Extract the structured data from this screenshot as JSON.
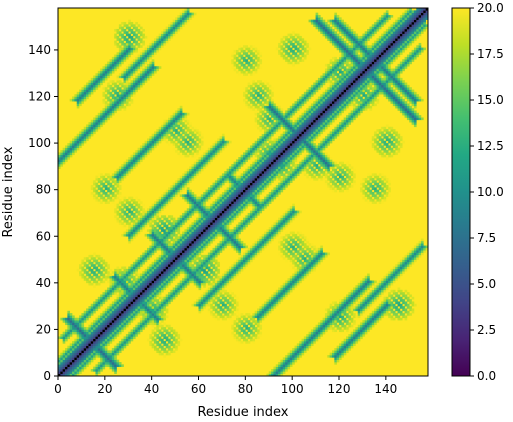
{
  "chart_data": {
    "type": "heatmap",
    "title": "",
    "xlabel": "Residue index",
    "ylabel": "Residue index",
    "n_residues": 158,
    "xlim": [
      0,
      158
    ],
    "ylim": [
      0,
      158
    ],
    "x_ticks": [
      0,
      20,
      40,
      60,
      80,
      100,
      120,
      140
    ],
    "y_ticks": [
      0,
      20,
      40,
      60,
      80,
      100,
      120,
      140
    ],
    "colorbar": {
      "min": 0.0,
      "max": 20.0,
      "ticks": [
        "0.0",
        "2.5",
        "5.0",
        "7.5",
        "10.0",
        "12.5",
        "15.0",
        "17.5",
        "20.0"
      ],
      "colormap": "viridis"
    },
    "saturated_value": 20.0,
    "diagonal_color": "#000000",
    "contact_segments": [
      {
        "axis": "diagonal",
        "offset": 0,
        "from": 0,
        "to": 158,
        "value": 3.0
      },
      {
        "axis": "anti",
        "sum": 28,
        "from": 4,
        "to": 24,
        "value": 7.0
      },
      {
        "axis": "anti",
        "sum": 66,
        "from": 24,
        "to": 42,
        "value": 8.5
      },
      {
        "axis": "anti",
        "sum": 100,
        "from": 40,
        "to": 60,
        "value": 8.0
      },
      {
        "axis": "anti",
        "sum": 132,
        "from": 55,
        "to": 77,
        "value": 8.0
      },
      {
        "axis": "anti",
        "sum": 158,
        "from": 73,
        "to": 85,
        "value": 9.0
      },
      {
        "axis": "anti",
        "sum": 205,
        "from": 90,
        "to": 115,
        "value": 7.5
      },
      {
        "axis": "anti",
        "sum": 262,
        "from": 110,
        "to": 131,
        "value": 7.0
      },
      {
        "axis": "anti",
        "sum": 270,
        "from": 118,
        "to": 152,
        "value": 8.0
      },
      {
        "axis": "parallel",
        "offset": 92,
        "from": 0,
        "to": 40,
        "value": 8.5
      },
      {
        "axis": "parallel",
        "offset": 110,
        "from": 8,
        "to": 30,
        "value": 8.5
      },
      {
        "axis": "parallel",
        "offset": 60,
        "from": 25,
        "to": 52,
        "value": 9.0
      },
      {
        "axis": "parallel",
        "offset": 30,
        "from": 30,
        "to": 70,
        "value": 9.5
      },
      {
        "axis": "parallel",
        "offset": 100,
        "from": 28,
        "to": 55,
        "value": 9.5
      },
      {
        "axis": "parallel",
        "offset": 14,
        "from": 2,
        "to": 140,
        "value": 10.5
      },
      {
        "axis": "parallel",
        "offset": 6,
        "from": 0,
        "to": 150,
        "value": 11.5
      }
    ],
    "diffuse_clusters": [
      {
        "x": 40,
        "y": 28,
        "value": 12.0
      },
      {
        "x": 45,
        "y": 62,
        "value": 11.0
      },
      {
        "x": 90,
        "y": 95,
        "value": 12.0
      },
      {
        "x": 110,
        "y": 90,
        "value": 12.5
      },
      {
        "x": 130,
        "y": 120,
        "value": 12.0
      },
      {
        "x": 145,
        "y": 30,
        "value": 11.5
      },
      {
        "x": 25,
        "y": 120,
        "value": 12.0
      },
      {
        "x": 70,
        "y": 30,
        "value": 12.5
      },
      {
        "x": 105,
        "y": 50,
        "value": 12.5
      },
      {
        "x": 55,
        "y": 100,
        "value": 12.5
      },
      {
        "x": 100,
        "y": 140,
        "value": 12.0
      },
      {
        "x": 20,
        "y": 80,
        "value": 12.5
      },
      {
        "x": 15,
        "y": 45,
        "value": 12.0
      },
      {
        "x": 85,
        "y": 120,
        "value": 12.5
      },
      {
        "x": 135,
        "y": 80,
        "value": 12.5
      }
    ]
  }
}
